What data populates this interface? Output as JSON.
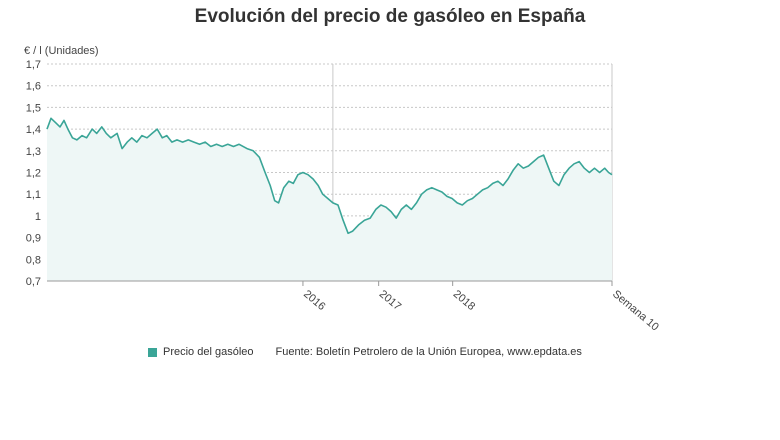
{
  "chart_data": {
    "type": "area",
    "title": "Evolución del precio de gasóleo en España",
    "ylabel": "€ / l (Unidades)",
    "ylim": [
      0.7,
      1.7
    ],
    "yticks": [
      "0,7",
      "0,8",
      "0,9",
      "1",
      "1,1",
      "1,2",
      "1,3",
      "1,4",
      "1,5",
      "1,6",
      "1,7"
    ],
    "yticks_values": [
      0.7,
      0.8,
      0.9,
      1.0,
      1.1,
      1.2,
      1.3,
      1.4,
      1.5,
      1.6,
      1.7
    ],
    "xlim": [
      0,
      100
    ],
    "xticks": [
      {
        "label": "2016",
        "x": 45.3
      },
      {
        "label": "2017",
        "x": 58.7
      },
      {
        "label": "2018",
        "x": 71.8
      },
      {
        "label": "Semana 10",
        "x": 100
      }
    ],
    "marker_line_x": 50.6,
    "grid": true,
    "legend_position": "bottom",
    "series": [
      {
        "name": "Precio del gasóleo",
        "color": "#3aa597",
        "points": [
          [
            0,
            1.4
          ],
          [
            0.7,
            1.45
          ],
          [
            1.5,
            1.43
          ],
          [
            2.3,
            1.41
          ],
          [
            3,
            1.44
          ],
          [
            3.7,
            1.4
          ],
          [
            4.5,
            1.36
          ],
          [
            5.3,
            1.35
          ],
          [
            6.2,
            1.37
          ],
          [
            7,
            1.36
          ],
          [
            8,
            1.4
          ],
          [
            8.8,
            1.38
          ],
          [
            9.7,
            1.41
          ],
          [
            10.5,
            1.38
          ],
          [
            11.3,
            1.36
          ],
          [
            12.4,
            1.38
          ],
          [
            13.3,
            1.31
          ],
          [
            14.2,
            1.34
          ],
          [
            15,
            1.36
          ],
          [
            15.9,
            1.34
          ],
          [
            16.8,
            1.37
          ],
          [
            17.7,
            1.36
          ],
          [
            18.6,
            1.38
          ],
          [
            19.5,
            1.4
          ],
          [
            20.4,
            1.36
          ],
          [
            21.2,
            1.37
          ],
          [
            22.1,
            1.34
          ],
          [
            23,
            1.35
          ],
          [
            24,
            1.34
          ],
          [
            25,
            1.35
          ],
          [
            26,
            1.34
          ],
          [
            27,
            1.33
          ],
          [
            28,
            1.34
          ],
          [
            29,
            1.32
          ],
          [
            30,
            1.33
          ],
          [
            31,
            1.32
          ],
          [
            32,
            1.33
          ],
          [
            33,
            1.32
          ],
          [
            34,
            1.33
          ],
          [
            35.4,
            1.31
          ],
          [
            36.5,
            1.3
          ],
          [
            37.6,
            1.27
          ],
          [
            38.6,
            1.2
          ],
          [
            39.5,
            1.14
          ],
          [
            40.3,
            1.07
          ],
          [
            41,
            1.06
          ],
          [
            41.9,
            1.13
          ],
          [
            42.8,
            1.16
          ],
          [
            43.6,
            1.15
          ],
          [
            44.4,
            1.19
          ],
          [
            45.3,
            1.2
          ],
          [
            46.2,
            1.19
          ],
          [
            47.1,
            1.17
          ],
          [
            48,
            1.14
          ],
          [
            48.8,
            1.1
          ],
          [
            49.7,
            1.08
          ],
          [
            50.6,
            1.06
          ],
          [
            51.5,
            1.05
          ],
          [
            52.4,
            0.98
          ],
          [
            53.3,
            0.92
          ],
          [
            54.1,
            0.93
          ],
          [
            55.2,
            0.96
          ],
          [
            56.2,
            0.98
          ],
          [
            57.2,
            0.99
          ],
          [
            58.2,
            1.03
          ],
          [
            59.1,
            1.05
          ],
          [
            60,
            1.04
          ],
          [
            60.9,
            1.02
          ],
          [
            61.8,
            0.99
          ],
          [
            62.7,
            1.03
          ],
          [
            63.6,
            1.05
          ],
          [
            64.5,
            1.03
          ],
          [
            65.4,
            1.06
          ],
          [
            66.3,
            1.1
          ],
          [
            67.2,
            1.12
          ],
          [
            68.1,
            1.13
          ],
          [
            69,
            1.12
          ],
          [
            69.9,
            1.11
          ],
          [
            70.8,
            1.09
          ],
          [
            71.7,
            1.08
          ],
          [
            72.6,
            1.06
          ],
          [
            73.5,
            1.05
          ],
          [
            74.4,
            1.07
          ],
          [
            75.3,
            1.08
          ],
          [
            76.2,
            1.1
          ],
          [
            77.1,
            1.12
          ],
          [
            78,
            1.13
          ],
          [
            78.9,
            1.15
          ],
          [
            79.8,
            1.16
          ],
          [
            80.7,
            1.14
          ],
          [
            81.6,
            1.17
          ],
          [
            82.5,
            1.21
          ],
          [
            83.4,
            1.24
          ],
          [
            84.3,
            1.22
          ],
          [
            85.2,
            1.23
          ],
          [
            86.1,
            1.25
          ],
          [
            87,
            1.27
          ],
          [
            87.9,
            1.28
          ],
          [
            88.8,
            1.22
          ],
          [
            89.7,
            1.16
          ],
          [
            90.6,
            1.14
          ],
          [
            91.5,
            1.19
          ],
          [
            92.4,
            1.22
          ],
          [
            93.3,
            1.24
          ],
          [
            94.2,
            1.25
          ],
          [
            95.1,
            1.22
          ],
          [
            96,
            1.2
          ],
          [
            96.9,
            1.22
          ],
          [
            97.8,
            1.2
          ],
          [
            98.7,
            1.22
          ],
          [
            99.4,
            1.2
          ],
          [
            100,
            1.19
          ]
        ]
      }
    ]
  },
  "legend": {
    "series_label": "Precio del gasóleo",
    "source": "Fuente: Boletín Petrolero de la Unión Europea, www.epdata.es"
  }
}
